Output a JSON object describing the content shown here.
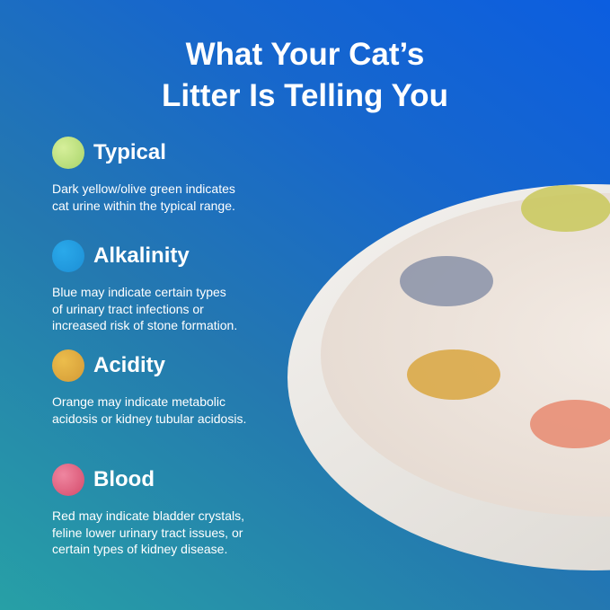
{
  "title_lines": [
    "What Your Cat’s",
    "Litter Is Telling You"
  ],
  "items": [
    {
      "label": "Typical",
      "color": "#b8df7a",
      "text": [
        "Dark yellow/olive green indicates",
        "cat urine within the typical range."
      ]
    },
    {
      "label": "Alkalinity",
      "color": "#1e9ee0",
      "text": [
        "Blue may indicate certain types",
        "of urinary tract infections or",
        "increased risk of stone formation."
      ]
    },
    {
      "label": "Acidity",
      "color": "#e0aa3c",
      "text": [
        "Orange may indicate metabolic",
        "acidosis or kidney tubular acidosis."
      ]
    },
    {
      "label": "Blood",
      "color": "#e0607e",
      "text": [
        "Red may indicate bladder crystals,",
        "feline lower urinary tract issues, or",
        "certain types of kidney disease."
      ]
    }
  ],
  "spot_colors": {
    "typical": "#c9c85a",
    "alkalinity": "#8a92a8",
    "acidity": "#d9a640",
    "blood": "#e88a70"
  }
}
